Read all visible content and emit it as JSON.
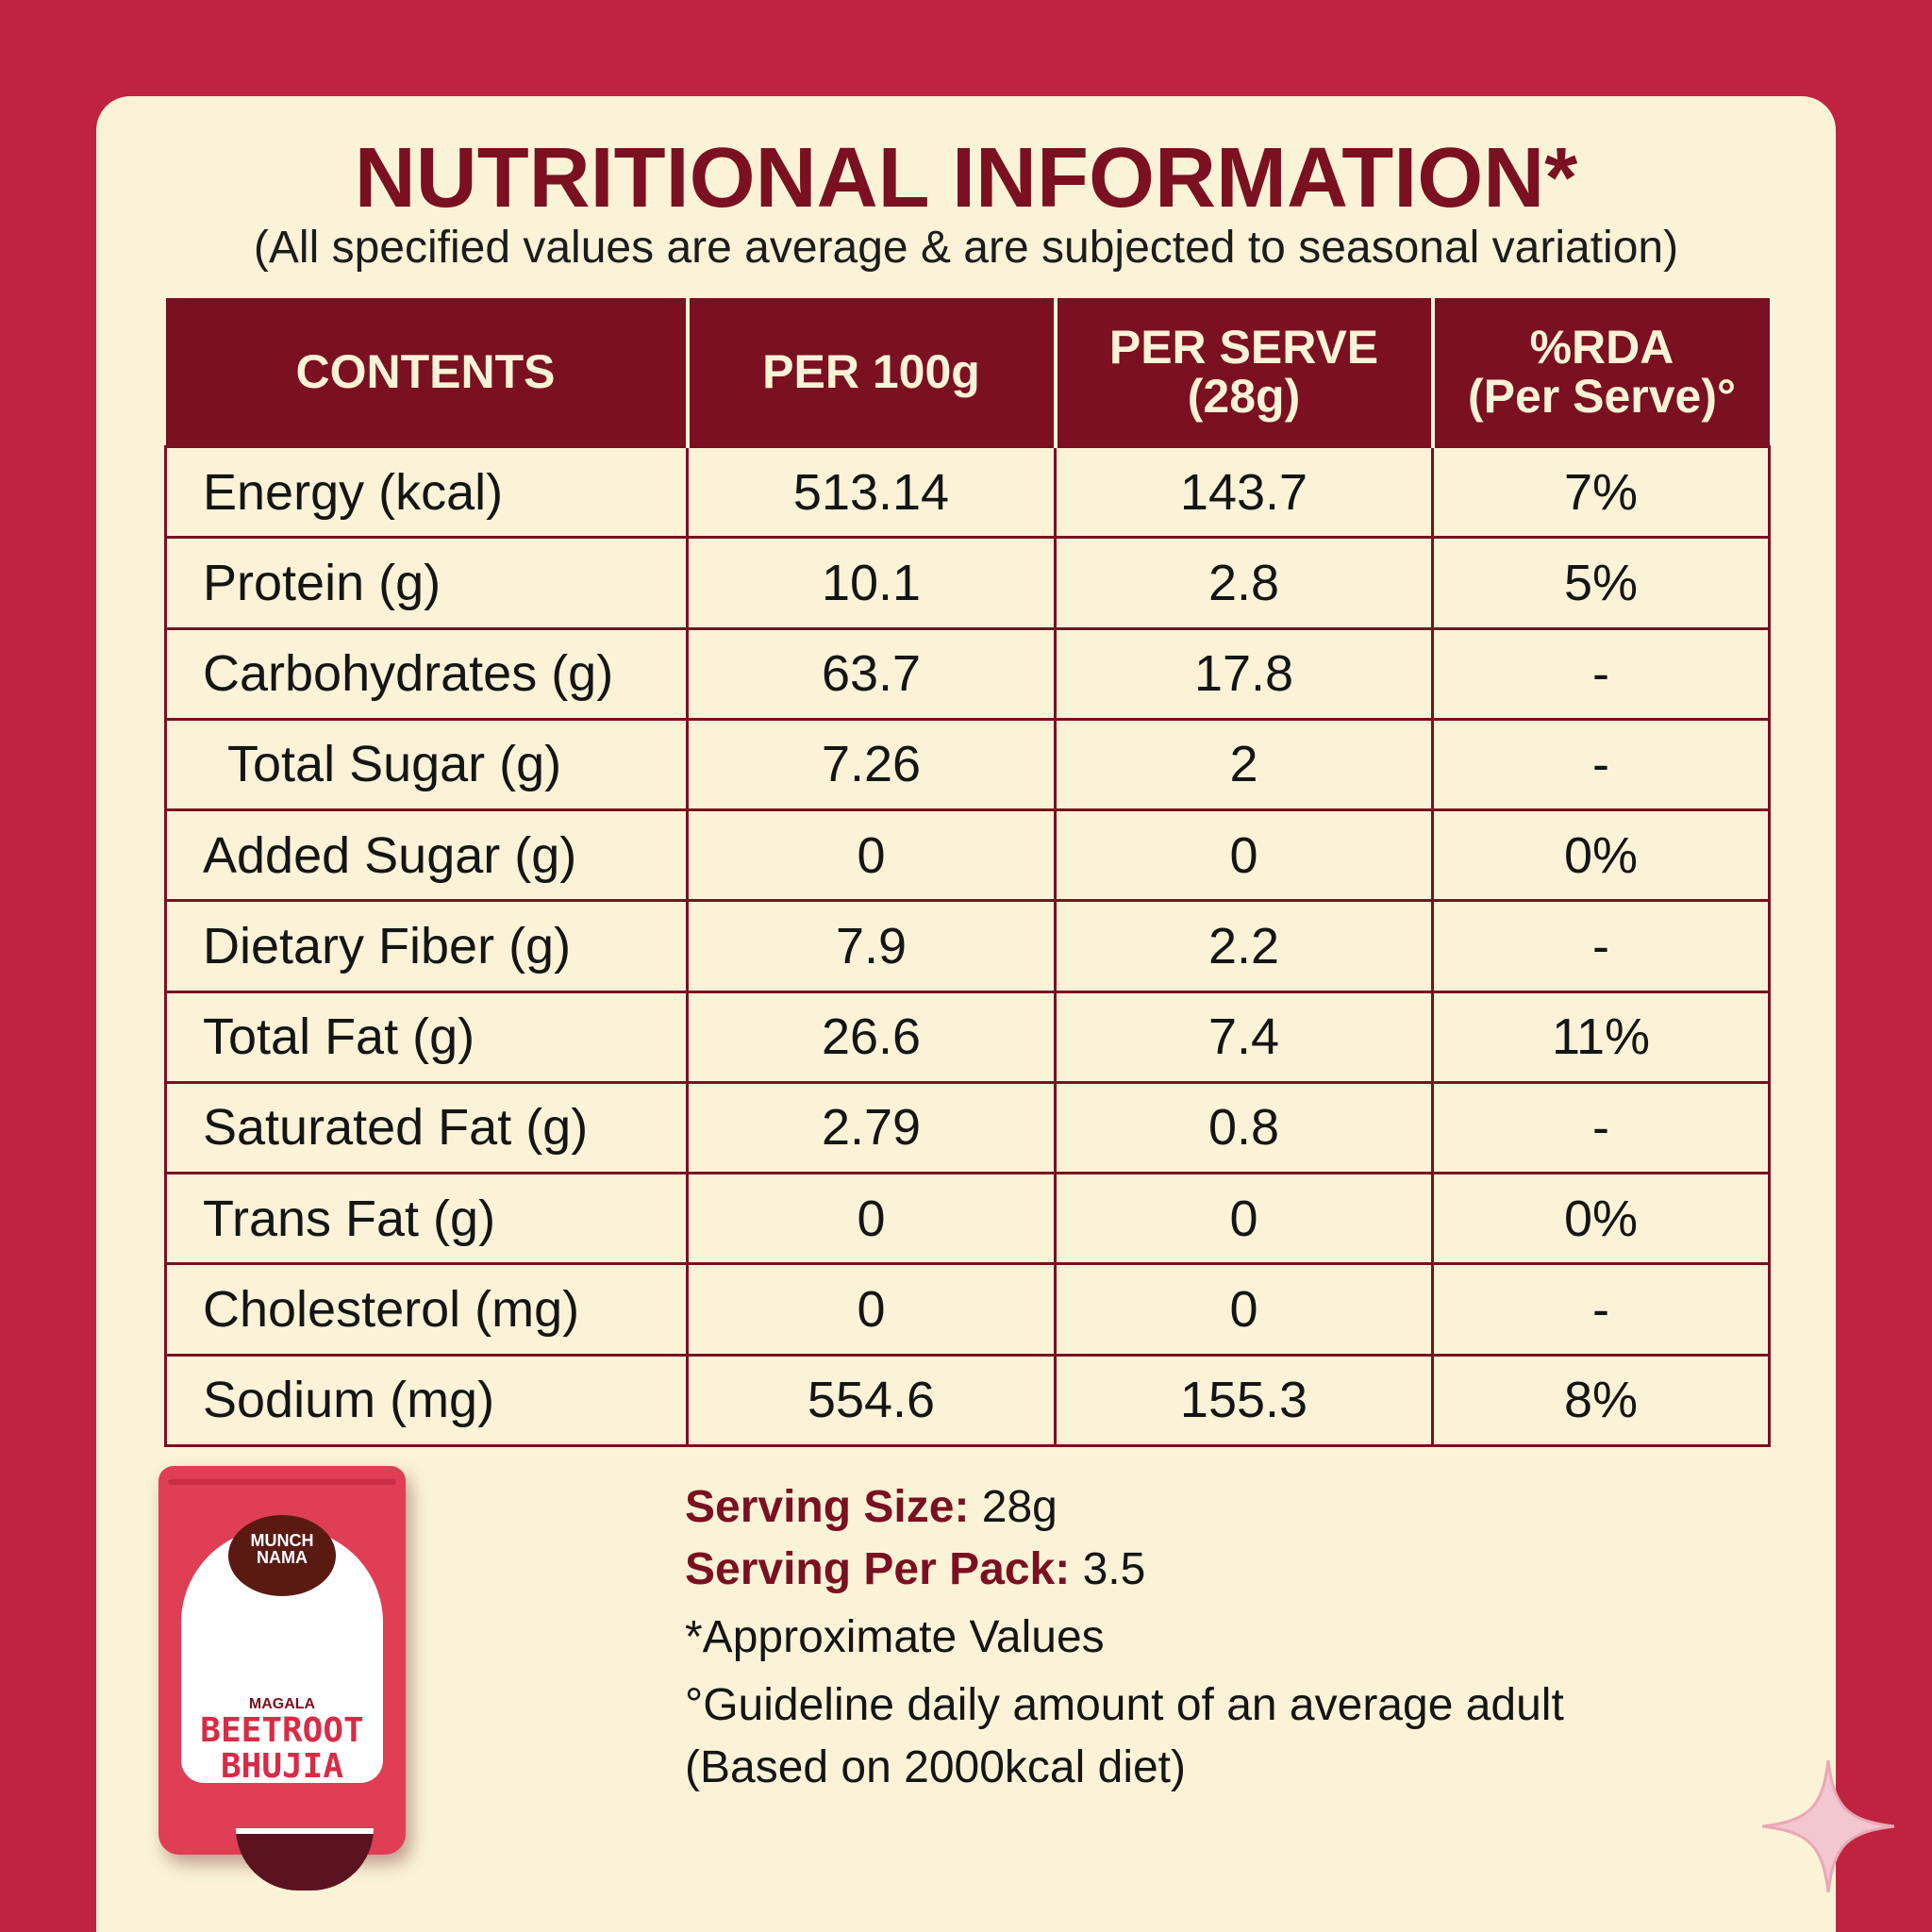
{
  "heading": {
    "title": "NUTRITIONAL INFORMATION*",
    "subtitle": "(All specified values are average & are subjected to seasonal variation)"
  },
  "table": {
    "headers": [
      "CONTENTS",
      "PER 100g",
      "PER SERVE (28g)",
      "%RDA (Per Serve)°"
    ],
    "rows": [
      {
        "label": "Energy (kcal)",
        "per100": "513.14",
        "perServe": "143.7",
        "rda": "7%"
      },
      {
        "label": "Protein (g)",
        "per100": "10.1",
        "perServe": "2.8",
        "rda": "5%"
      },
      {
        "label": "Carbohydrates (g)",
        "per100": "63.7",
        "perServe": "17.8",
        "rda": "-"
      },
      {
        "label": "Total Sugar (g)",
        "per100": "7.26",
        "perServe": "2",
        "rda": "-"
      },
      {
        "label": "Added Sugar (g)",
        "per100": "0",
        "perServe": "0",
        "rda": "0%"
      },
      {
        "label": "Dietary Fiber (g)",
        "per100": "7.9",
        "perServe": "2.2",
        "rda": "-"
      },
      {
        "label": "Total Fat (g)",
        "per100": "26.6",
        "perServe": "7.4",
        "rda": "11%"
      },
      {
        "label": "Saturated Fat (g)",
        "per100": "2.79",
        "perServe": "0.8",
        "rda": "-"
      },
      {
        "label": "Trans Fat (g)",
        "per100": "0",
        "perServe": "0",
        "rda": "0%"
      },
      {
        "label": "Cholesterol (mg)",
        "per100": "0",
        "perServe": "0",
        "rda": "-"
      },
      {
        "label": "Sodium (mg)",
        "per100": "554.6",
        "perServe": "155.3",
        "rda": "8%"
      }
    ]
  },
  "notes": {
    "serving_size_key": "Serving Size:",
    "serving_size_value": "28g",
    "serving_per_pack_key": "Serving Per Pack:",
    "serving_per_pack_value": "3.5",
    "approx": "*Approximate Values",
    "guideline_line1": "°Guideline daily amount of an average adult",
    "guideline_line2": "(Based on 2000kcal diet)"
  },
  "product": {
    "brand": "MUNCH\nNAMA",
    "variant": "MAGALA",
    "name": "BEETROOT\nBHUJIA"
  },
  "colors": {
    "background": "#c0233f",
    "panel": "#fbf3d8",
    "maroon": "#7a1020"
  }
}
